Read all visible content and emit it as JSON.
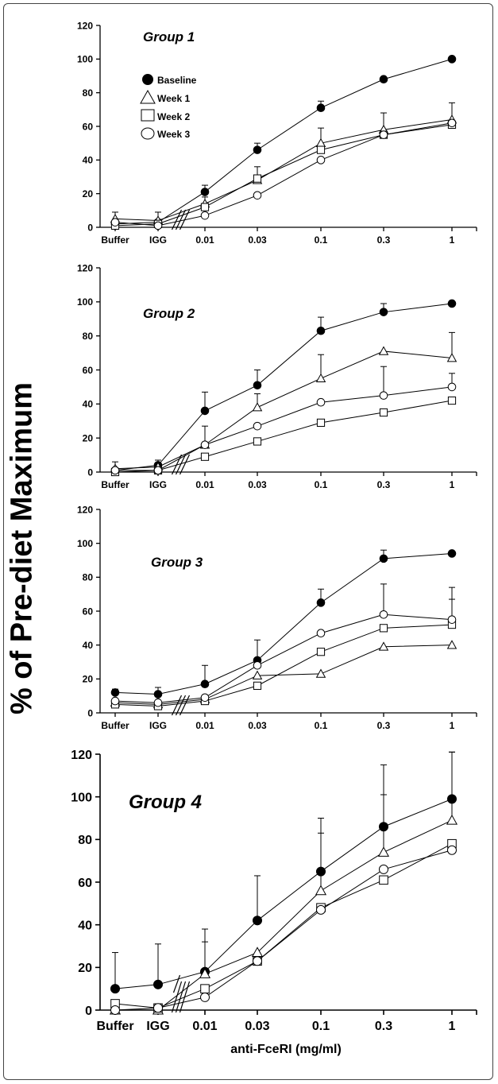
{
  "figure": {
    "ylabel": "% of Pre-diet Maximum",
    "xlabel": "anti-FceRI (mg/ml)",
    "legend": [
      "Baseline",
      "Week 1",
      "Week 2",
      "Week 3"
    ]
  },
  "chart_data": [
    {
      "type": "line",
      "title": "Group 1",
      "categories": [
        "Buffer",
        "IGG",
        "0.01",
        "0.03",
        "0.1",
        "0.3",
        "1"
      ],
      "ylim": [
        0,
        120
      ],
      "yticks": [
        0,
        20,
        40,
        60,
        80,
        100,
        120
      ],
      "axis_break_after": "IGG",
      "legend": "top-left",
      "series": [
        {
          "name": "Baseline",
          "marker": "filled-circle",
          "values": [
            2,
            3,
            21,
            46,
            71,
            88,
            100
          ],
          "error": [
            0,
            0,
            4,
            4,
            4,
            0,
            0
          ]
        },
        {
          "name": "Week 1",
          "marker": "triangle",
          "values": [
            5,
            4,
            14,
            28,
            50,
            58,
            64
          ],
          "error": [
            4,
            5,
            4,
            8,
            9,
            10,
            10
          ]
        },
        {
          "name": "Week 2",
          "marker": "square",
          "values": [
            1,
            2,
            12,
            29,
            46,
            55,
            61
          ],
          "error": [
            0,
            0,
            0,
            0,
            0,
            0,
            0
          ]
        },
        {
          "name": "Week 3",
          "marker": "open-circle",
          "values": [
            3,
            1,
            7,
            19,
            40,
            55,
            62
          ],
          "error": [
            0,
            0,
            0,
            0,
            0,
            0,
            0
          ]
        }
      ]
    },
    {
      "type": "line",
      "title": "Group 2",
      "categories": [
        "Buffer",
        "IGG",
        "0.01",
        "0.03",
        "0.1",
        "0.3",
        "1"
      ],
      "ylim": [
        0,
        120
      ],
      "yticks": [
        0,
        20,
        40,
        60,
        80,
        100,
        120
      ],
      "axis_break_after": "IGG",
      "series": [
        {
          "name": "Baseline",
          "marker": "filled-circle",
          "values": [
            1,
            4,
            36,
            51,
            83,
            94,
            99
          ],
          "error": [
            0,
            3,
            11,
            9,
            8,
            5,
            0
          ]
        },
        {
          "name": "Week 1",
          "marker": "triangle",
          "values": [
            2,
            3,
            16,
            38,
            55,
            71,
            67
          ],
          "error": [
            4,
            0,
            11,
            8,
            14,
            0,
            15
          ]
        },
        {
          "name": "Week 2",
          "marker": "square",
          "values": [
            0,
            1,
            9,
            18,
            29,
            35,
            42
          ],
          "error": [
            0,
            0,
            0,
            0,
            0,
            0,
            0
          ]
        },
        {
          "name": "Week 3",
          "marker": "open-circle",
          "values": [
            1,
            1,
            16,
            27,
            41,
            45,
            50
          ],
          "error": [
            0,
            0,
            0,
            0,
            0,
            17,
            8
          ]
        }
      ]
    },
    {
      "type": "line",
      "title": "Group 3",
      "categories": [
        "Buffer",
        "IGG",
        "0.01",
        "0.03",
        "0.1",
        "0.3",
        "1"
      ],
      "ylim": [
        0,
        120
      ],
      "yticks": [
        0,
        20,
        40,
        60,
        80,
        100,
        120
      ],
      "axis_break_after": "IGG",
      "series": [
        {
          "name": "Baseline",
          "marker": "filled-circle",
          "values": [
            12,
            11,
            17,
            31,
            65,
            91,
            94
          ],
          "error": [
            2,
            4,
            11,
            12,
            8,
            5,
            0
          ]
        },
        {
          "name": "Week 1",
          "marker": "triangle",
          "values": [
            6,
            5,
            8,
            22,
            23,
            39,
            40
          ],
          "error": [
            0,
            0,
            0,
            0,
            0,
            0,
            0
          ]
        },
        {
          "name": "Week 2",
          "marker": "square",
          "values": [
            5,
            4,
            7,
            16,
            36,
            50,
            52
          ],
          "error": [
            0,
            0,
            0,
            0,
            0,
            0,
            15
          ]
        },
        {
          "name": "Week 3",
          "marker": "open-circle",
          "values": [
            7,
            6,
            9,
            28,
            47,
            58,
            55
          ],
          "error": [
            0,
            0,
            0,
            0,
            0,
            18,
            19
          ]
        }
      ]
    },
    {
      "type": "line",
      "title": "Group 4",
      "xlabel": "anti-FceRI (mg/ml)",
      "categories": [
        "Buffer",
        "IGG",
        "0.01",
        "0.03",
        "0.1",
        "0.3",
        "1"
      ],
      "ylim": [
        0,
        120
      ],
      "yticks": [
        0,
        20,
        40,
        60,
        80,
        100,
        120
      ],
      "axis_break_after": "IGG",
      "series": [
        {
          "name": "Baseline",
          "marker": "filled-circle",
          "values": [
            10,
            12,
            18,
            42,
            65,
            86,
            99
          ],
          "error": [
            17,
            19,
            20,
            21,
            25,
            29,
            22
          ]
        },
        {
          "name": "Week 1",
          "marker": "triangle",
          "values": [
            0,
            0,
            17,
            27,
            56,
            74,
            89
          ],
          "error": [
            0,
            0,
            15,
            0,
            27,
            27,
            32
          ]
        },
        {
          "name": "Week 2",
          "marker": "square",
          "values": [
            3,
            1,
            10,
            23,
            48,
            61,
            78
          ],
          "error": [
            0,
            0,
            0,
            0,
            0,
            0,
            0
          ]
        },
        {
          "name": "Week 3",
          "marker": "open-circle",
          "values": [
            0,
            1,
            6,
            23,
            47,
            66,
            75
          ],
          "error": [
            0,
            0,
            0,
            0,
            0,
            0,
            0
          ]
        }
      ]
    }
  ]
}
